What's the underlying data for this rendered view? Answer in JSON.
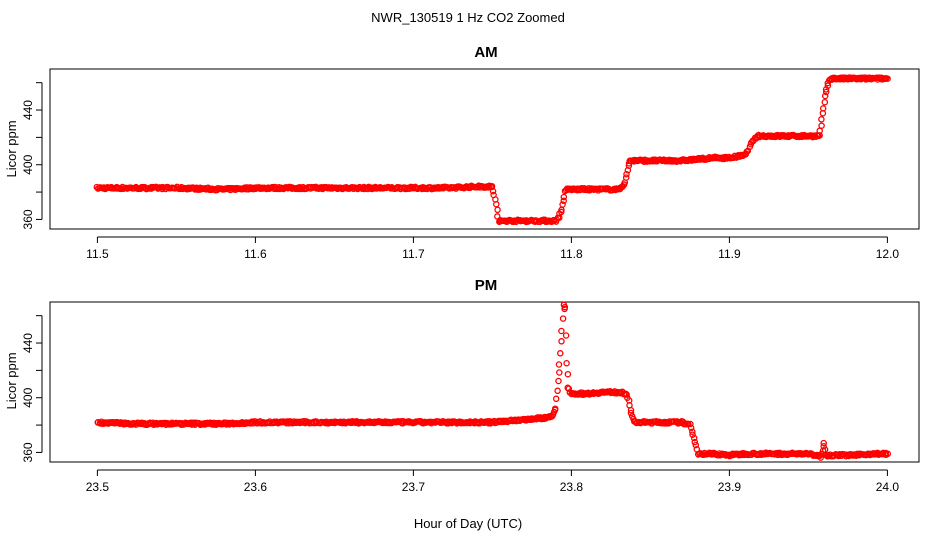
{
  "figure": {
    "title": "NWR_130519  1 Hz CO2 Zoomed",
    "xlabel": "Hour of Day (UTC)"
  },
  "colors": {
    "points": "#ff0000",
    "axis": "#000000",
    "background": "#ffffff"
  },
  "chart_data": [
    {
      "type": "scatter",
      "title": "AM",
      "ylabel": "Licor ppm",
      "xlim": [
        11.47,
        12.02
      ],
      "ylim": [
        353,
        470
      ],
      "xticks": [
        11.5,
        11.6,
        11.7,
        11.8,
        11.9,
        12.0
      ],
      "xtick_labels": [
        "11.5",
        "11.6",
        "11.7",
        "11.8",
        "11.9",
        "12.0"
      ],
      "yticks": [
        360,
        400,
        440
      ],
      "ytick_labels": [
        "360",
        "400",
        "440"
      ],
      "series": [
        {
          "x": [
            11.5,
            11.52,
            11.55,
            11.58,
            11.6,
            11.62,
            11.65,
            11.68,
            11.7,
            11.72,
            11.74,
            11.75,
            11.751,
            11.753,
            11.754,
            11.755,
            11.757,
            11.76,
            11.77,
            11.78,
            11.79,
            11.792,
            11.794,
            11.795,
            11.796,
            11.797,
            11.8,
            11.81,
            11.82,
            11.83,
            11.834,
            11.835,
            11.836,
            11.837,
            11.838,
            11.84,
            11.85,
            11.86,
            11.87,
            11.88,
            11.89,
            11.9,
            11.91,
            11.912,
            11.914,
            11.916,
            11.918,
            11.92,
            11.93,
            11.94,
            11.95,
            11.957,
            11.958,
            11.959,
            11.96,
            11.961,
            11.962,
            11.964,
            11.97,
            11.98,
            11.99,
            12.0
          ],
          "y": [
            383,
            383,
            383,
            382,
            383,
            383,
            383,
            383,
            383,
            383,
            384,
            384,
            378,
            367,
            358,
            359,
            359,
            359,
            359,
            359,
            359,
            362,
            367,
            374,
            380,
            382,
            382,
            382,
            382,
            382,
            387,
            393,
            399,
            403,
            403,
            403,
            403,
            403,
            403,
            404,
            405,
            405,
            407,
            411,
            416,
            419,
            421,
            421,
            421,
            421,
            421,
            421,
            428,
            437,
            446,
            453,
            458,
            463,
            463,
            463,
            463,
            463
          ]
        }
      ]
    },
    {
      "type": "scatter",
      "title": "PM",
      "ylabel": "Licor ppm",
      "xlim": [
        23.47,
        24.02
      ],
      "ylim": [
        353,
        470
      ],
      "xticks": [
        23.5,
        23.6,
        23.7,
        23.8,
        23.9,
        24.0
      ],
      "xtick_labels": [
        "23.5",
        "23.6",
        "23.7",
        "23.8",
        "23.9",
        "24.0"
      ],
      "yticks": [
        360,
        400,
        440
      ],
      "ytick_labels": [
        "360",
        "400",
        "440"
      ],
      "series": [
        {
          "x": [
            23.5,
            23.52,
            23.55,
            23.58,
            23.6,
            23.62,
            23.65,
            23.68,
            23.7,
            23.72,
            23.75,
            23.77,
            23.78,
            23.787,
            23.79,
            23.791,
            23.792,
            23.793,
            23.794,
            23.795,
            23.796,
            23.797,
            23.798,
            23.8,
            23.81,
            23.82,
            23.83,
            23.835,
            23.837,
            23.838,
            23.84,
            23.85,
            23.86,
            23.87,
            23.875,
            23.877,
            23.879,
            23.88,
            23.89,
            23.9,
            23.91,
            23.92,
            23.93,
            23.94,
            23.95,
            23.958,
            23.959,
            23.96,
            23.961,
            23.97,
            23.98,
            23.99,
            24.0
          ],
          "y": [
            382,
            381,
            381,
            381,
            382,
            382,
            382,
            382,
            382,
            382,
            382,
            384,
            385,
            386,
            392,
            405,
            418,
            432,
            449,
            468,
            465,
            426,
            408,
            403,
            403,
            404,
            404,
            403,
            395,
            388,
            382,
            382,
            382,
            382,
            380,
            373,
            366,
            359,
            359,
            358,
            359,
            359,
            359,
            359,
            359,
            357,
            362,
            367,
            358,
            358,
            358,
            359,
            359
          ]
        }
      ]
    }
  ]
}
